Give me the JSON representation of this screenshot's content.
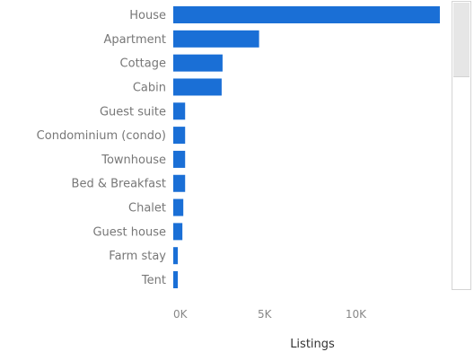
{
  "chart_data": {
    "type": "bar",
    "orientation": "horizontal",
    "categories": [
      "House",
      "Apartment",
      "Cottage",
      "Cabin",
      "Guest suite",
      "Condominium (condo)",
      "Townhouse",
      "Bed & Breakfast",
      "Chalet",
      "Guest house",
      "Farm stay",
      "Tent"
    ],
    "values": [
      14600,
      4700,
      2700,
      2650,
      650,
      650,
      650,
      650,
      550,
      500,
      250,
      250
    ],
    "xlabel": "Listings",
    "ylabel": "",
    "xticks": [
      "0K",
      "5K",
      "10K"
    ],
    "xtick_values": [
      0,
      5000,
      10000
    ],
    "xlim": [
      0,
      14700
    ],
    "grid": false,
    "bar_color": "#1a6fd6"
  }
}
